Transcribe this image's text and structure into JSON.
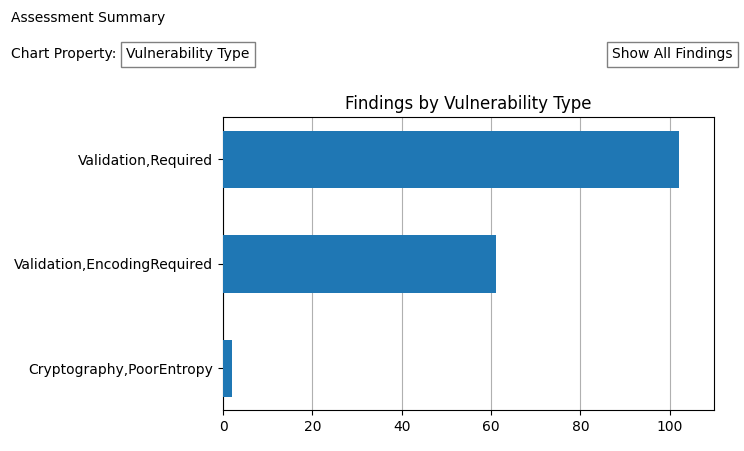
{
  "chart_data": {
    "type": "bar",
    "orientation": "horizontal",
    "title": "Findings by Vulnerability Type",
    "categories": [
      "Cryptography,PoorEntropy",
      "Validation,EncodingRequired",
      "Validation,Required"
    ],
    "values": [
      2,
      61,
      102
    ],
    "xlim": [
      0,
      110
    ],
    "xticks": [
      0,
      20,
      40,
      60,
      80,
      100
    ],
    "grid": true,
    "annotations": [
      "Assessment Summary",
      "Chart Property:",
      "Vulnerability Type",
      "Show All Findings"
    ]
  }
}
